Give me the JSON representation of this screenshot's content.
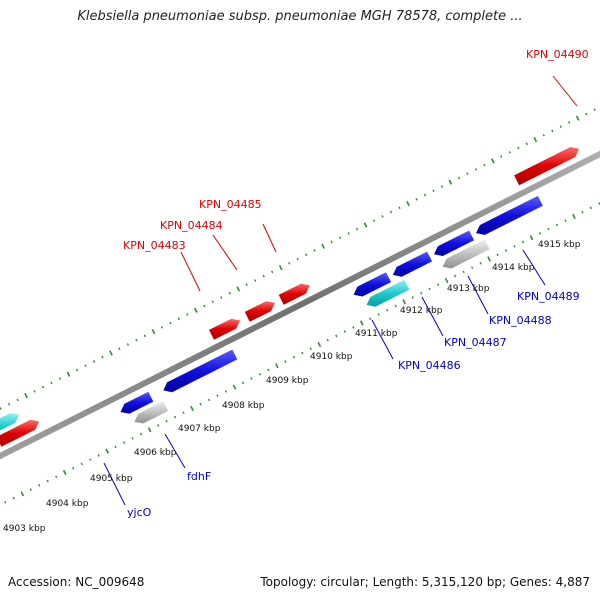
{
  "title": "Klebsiella pneumoniae subsp. pneumoniae MGH 78578, complete ...",
  "footer": {
    "accession": "Accession: NC_009648",
    "summary": "Topology: circular; Length: 5,315,120 bp; Genes: 4,887"
  },
  "colors": {
    "forward_gene": "#e00000",
    "reverse_gene": "#1010e0",
    "rna_gene": "#20c8d0",
    "pseudo_gene": "#c0c0c0",
    "tick": "#2e8b2e",
    "backbone": "#808080",
    "label_top": "#e00000",
    "label_bottom": "#0000cc"
  },
  "scale_labels": [
    "4903 kbp",
    "4904 kbp",
    "4905 kbp",
    "4906 kbp",
    "4907 kbp",
    "4908 kbp",
    "4909 kbp",
    "4910 kbp",
    "4911 kbp",
    "4912 kbp",
    "4913 kbp",
    "4914 kbp",
    "4915 kbp"
  ],
  "gene_labels": [
    {
      "text": "KPN_04490",
      "strand": "top"
    },
    {
      "text": "KPN_04485",
      "strand": "top"
    },
    {
      "text": "KPN_04484",
      "strand": "top"
    },
    {
      "text": "KPN_04483",
      "strand": "top"
    },
    {
      "text": "KPN_04489",
      "strand": "bottom"
    },
    {
      "text": "KPN_04488",
      "strand": "bottom"
    },
    {
      "text": "KPN_04487",
      "strand": "bottom"
    },
    {
      "text": "KPN_04486",
      "strand": "bottom"
    },
    {
      "text": "fdhF",
      "strand": "bottom"
    },
    {
      "text": "yjcO",
      "strand": "bottom"
    }
  ]
}
